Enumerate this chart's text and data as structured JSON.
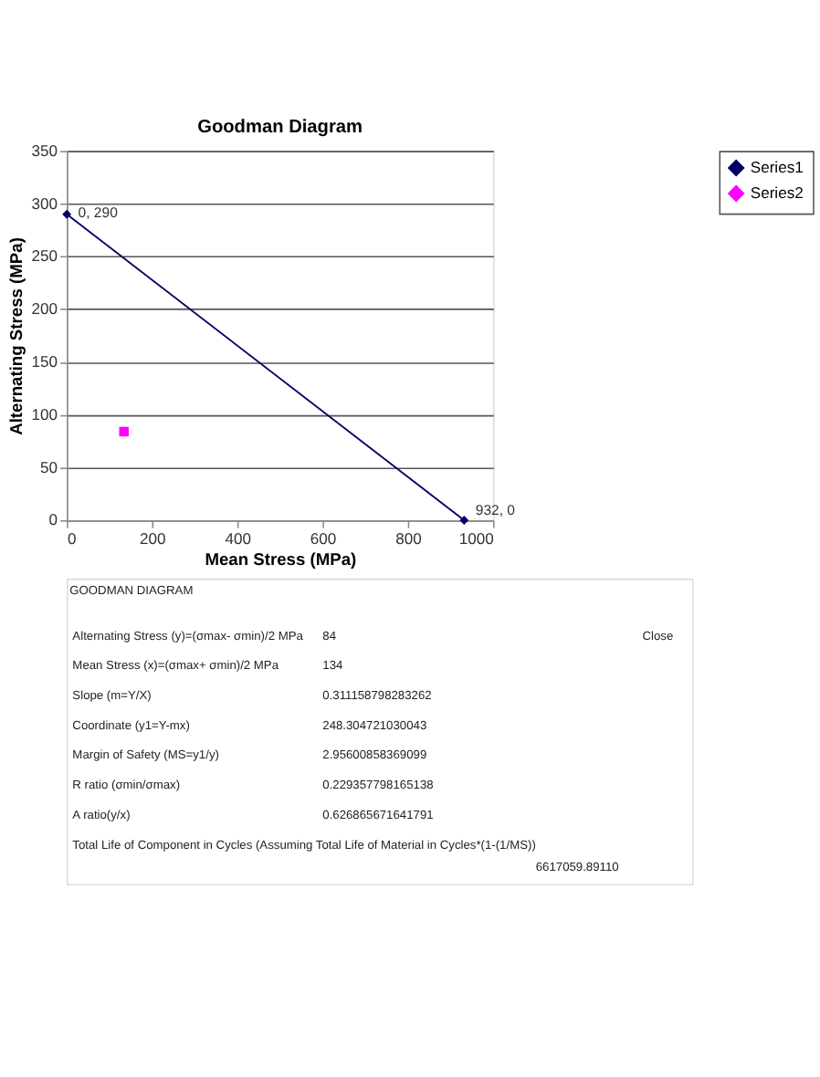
{
  "chart_data": {
    "type": "line",
    "title": "Goodman Diagram",
    "xlabel": "Mean Stress (MPa)",
    "ylabel": "Alternating Stress (MPa)",
    "series": [
      {
        "name": "Series1",
        "color": "#000066",
        "marker": "diamond",
        "x": [
          0,
          932
        ],
        "values": [
          290,
          0
        ]
      },
      {
        "name": "Series2",
        "type": "scatter",
        "color": "#ff00ff",
        "marker": "square",
        "x": [
          134
        ],
        "values": [
          84
        ]
      }
    ],
    "xlim": [
      0,
      1000
    ],
    "xticks": [
      0,
      200,
      400,
      600,
      800,
      {
        "value": 1000,
        "label": "1000"
      }
    ],
    "ylim": [
      0,
      350
    ],
    "yticks": [
      0,
      50,
      100,
      150,
      200,
      250,
      300,
      350
    ],
    "grid": "y",
    "legend": "right",
    "annotations": [
      {
        "text": "0, 290",
        "x": 0,
        "y": 290
      },
      {
        "text": "932, 0",
        "x": 932,
        "y": 0
      },
      "GOODMAN DIAGRAM",
      "Close",
      "Alternating Stress (y)=(σmax- σmin)/2  MPa",
      "84",
      "Mean Stress (x)=(σmax+ σmin)/2  MPa",
      "134",
      "Slope (m=Y/X)",
      "0.311158798283262",
      "Coordinate (y1=Y-mx)",
      "248.304721030043",
      "Margin of Safety (MS=y1/y)",
      "2.95600858369099",
      "R ratio (σmin/σmax)",
      "0.229357798165138",
      "A ratio(y/x)",
      "0.626865671641791",
      "Total Life of Component in Cycles (Assuming Total Life of Material in Cycles*(1-(1/MS))",
      "6617059.89110"
    ]
  }
}
